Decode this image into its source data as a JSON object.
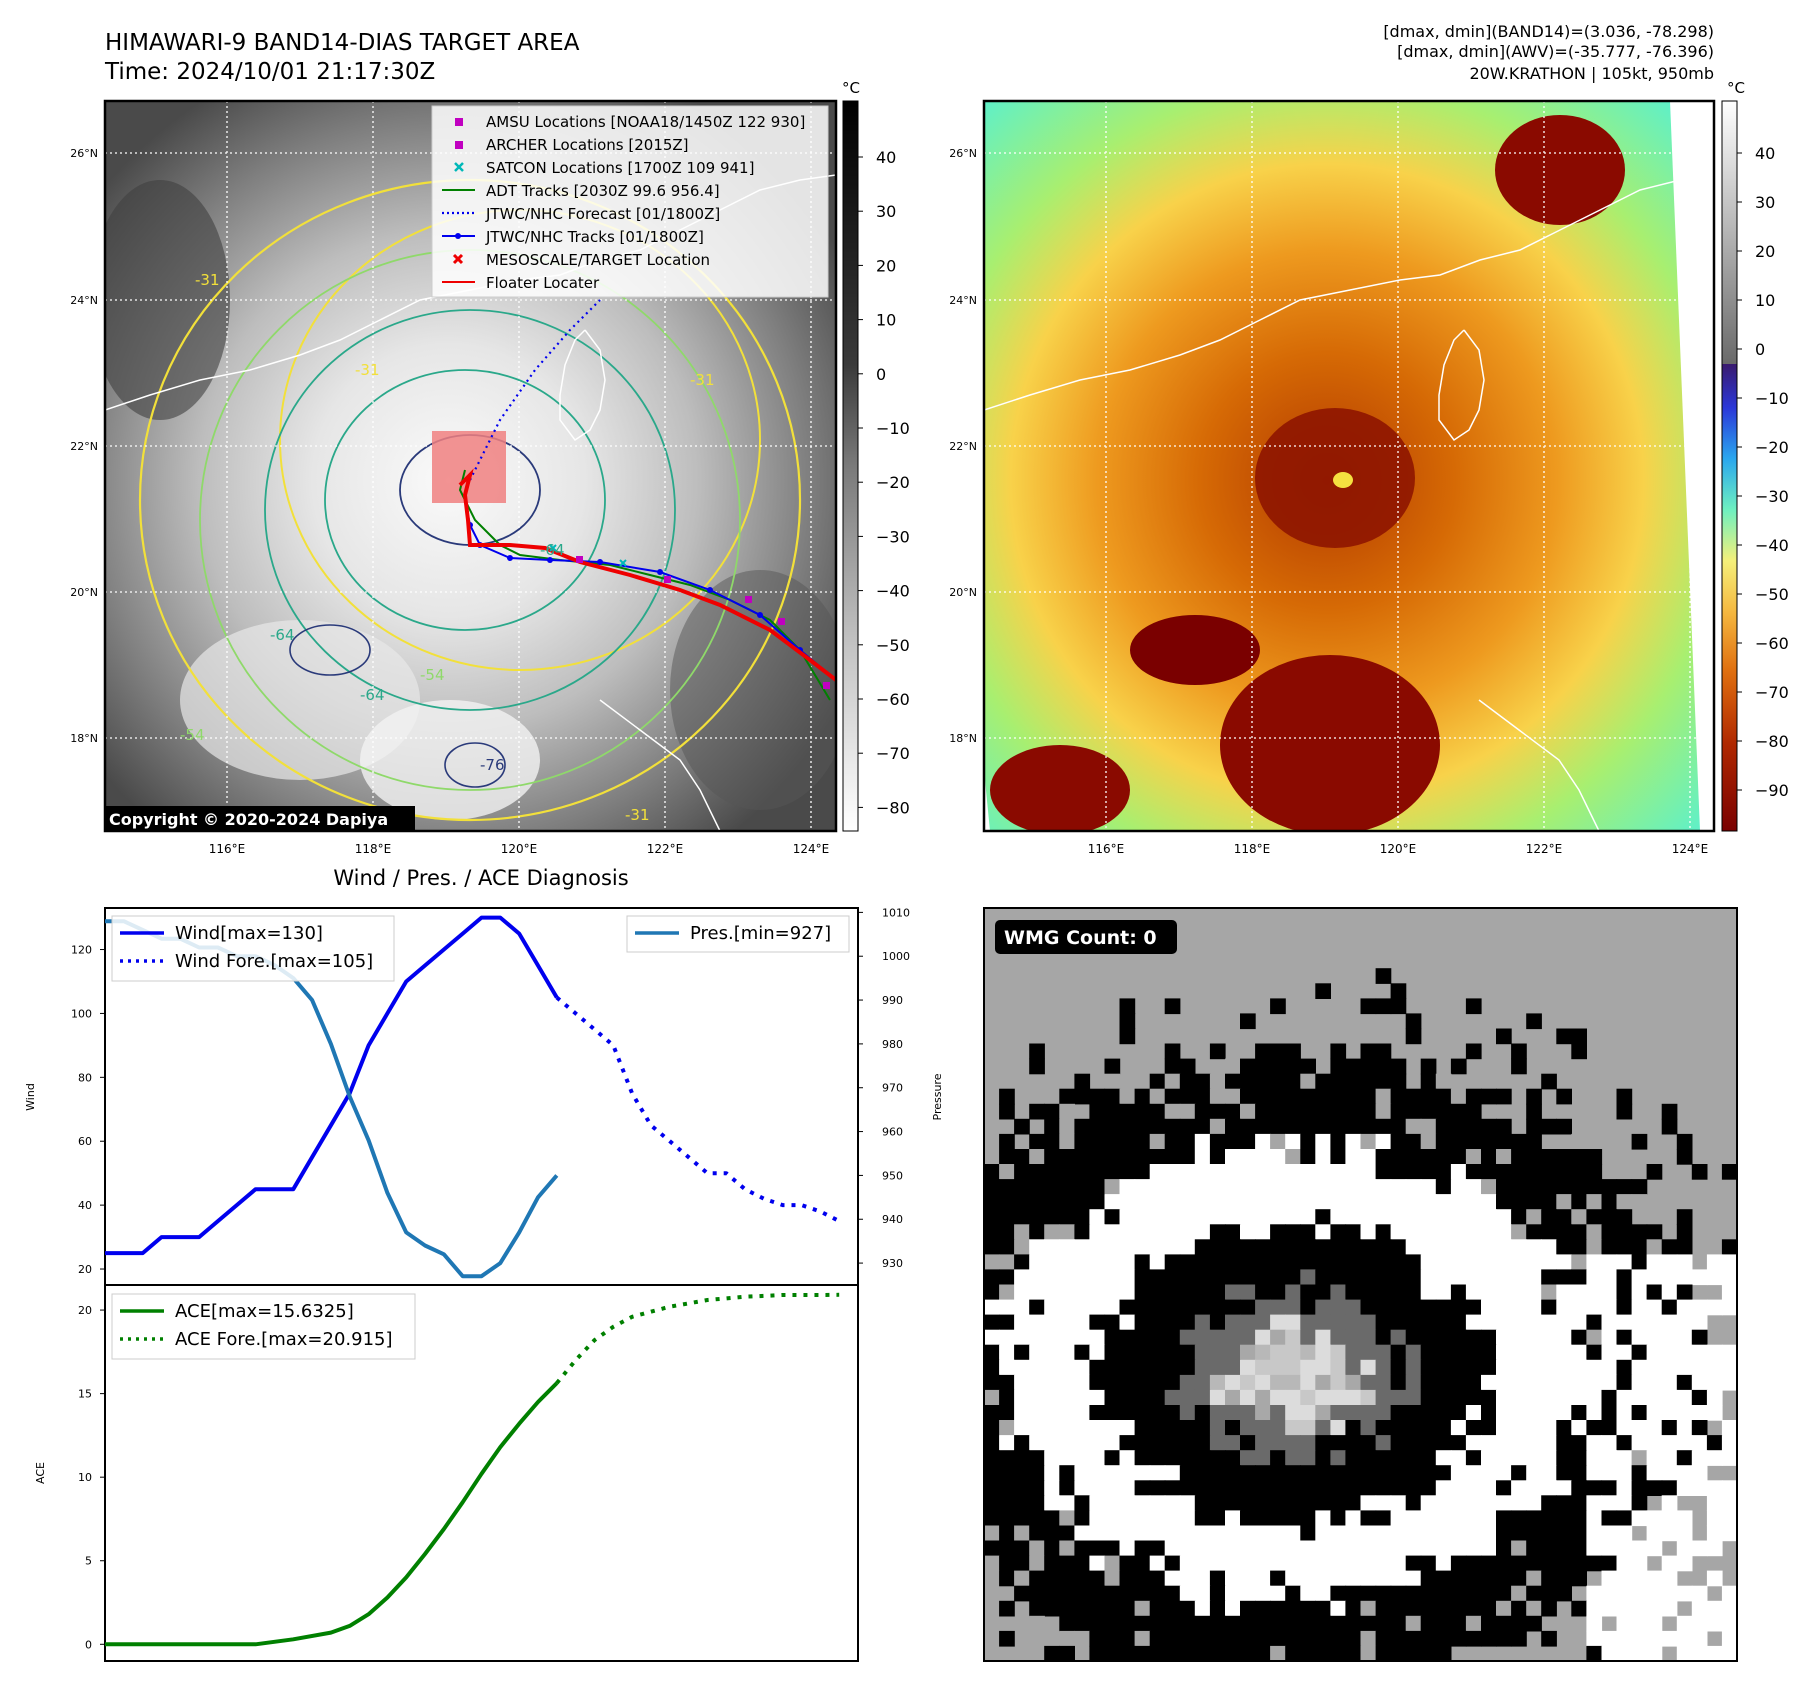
{
  "header": {
    "title_line1": "HIMAWARI-9 BAND14-DIAS TARGET AREA",
    "title_line2": "Time: 2024/10/01 21:17:30Z",
    "info_line1": "[dmax, dmin](BAND14)=(3.036, -78.298)",
    "info_line2": "[dmax, dmin](AWV)=(-35.777, -76.396)",
    "info_line3": "20W.KRATHON | 105kt, 950mb"
  },
  "map_axes": {
    "lat_labels": [
      "26°N",
      "24°N",
      "22°N",
      "20°N",
      "18°N"
    ],
    "lon_labels": [
      "116°E",
      "118°E",
      "120°E",
      "122°E",
      "124°E"
    ]
  },
  "colorbar_ir": {
    "unit": "°C",
    "ticks": [
      "40",
      "30",
      "20",
      "10",
      "0",
      "−10",
      "−20",
      "−30",
      "−40",
      "−50",
      "−60",
      "−70",
      "−80"
    ]
  },
  "colorbar_wv": {
    "unit": "°C",
    "ticks": [
      "40",
      "30",
      "20",
      "10",
      "0",
      "−10",
      "−20",
      "−30",
      "−40",
      "−50",
      "−60",
      "−70",
      "−80",
      "−90"
    ]
  },
  "legend": {
    "items": [
      "AMSU Locations [NOAA18/1450Z 122 930]",
      "ARCHER Locations [2015Z]",
      "SATCON Locations [1700Z 109 941]",
      "ADT Tracks [2030Z 99.6 956.4]",
      "JTWC/NHC Forecast [01/1800Z]",
      "JTWC/NHC Tracks [01/1800Z]",
      "MESOSCALE/TARGET Location",
      "Floater Locater"
    ],
    "colors": [
      "#c000c0",
      "#c000c0",
      "#00b8b8",
      "#008000",
      "#0000ee",
      "#0000ee",
      "#ee0000",
      "#ee0000"
    ]
  },
  "contour_labels": [
    "-31",
    "-31",
    "-64",
    "-64",
    "-54",
    "-54",
    "-76",
    "-64",
    "-31",
    "-31"
  ],
  "copyright": "Copyright © 2020-2024 Dapiya",
  "wmg": {
    "label": "WMG Count: 0"
  },
  "chart_data": [
    {
      "type": "line",
      "title": "Wind / Pres. / ACE Diagnosis",
      "ylabel": "Wind",
      "y2label": "Pressure",
      "ylim": [
        15,
        133
      ],
      "y2lim": [
        925,
        1011
      ],
      "yticks": [
        20,
        40,
        60,
        80,
        100,
        120
      ],
      "y2ticks": [
        930,
        940,
        950,
        960,
        970,
        980,
        990,
        1000,
        1010
      ],
      "xlim": [
        0,
        40
      ],
      "series": [
        {
          "name": "Wind[max=130]",
          "axis": "left",
          "style": "solid",
          "color": "#0000ee",
          "x": [
            0,
            1,
            2,
            3,
            4,
            5,
            6,
            7,
            8,
            9,
            10,
            11,
            12,
            13,
            14,
            15,
            16,
            17,
            18,
            19,
            20,
            21,
            22,
            23,
            24
          ],
          "values": [
            25,
            25,
            25,
            30,
            30,
            30,
            35,
            40,
            45,
            45,
            45,
            55,
            65,
            75,
            90,
            100,
            110,
            115,
            120,
            125,
            130,
            130,
            125,
            115,
            105
          ]
        },
        {
          "name": "Wind Fore.[max=105]",
          "axis": "left",
          "style": "dotted",
          "color": "#0000ee",
          "x": [
            24,
            25,
            26,
            27,
            28,
            29,
            30,
            31,
            32,
            33,
            34,
            35,
            36,
            37,
            38,
            39
          ],
          "values": [
            105,
            100,
            95,
            90,
            75,
            65,
            60,
            55,
            50,
            50,
            45,
            42,
            40,
            40,
            38,
            35
          ]
        },
        {
          "name": "Pres.[min=927]",
          "axis": "right",
          "style": "solid",
          "color": "#1f77b4",
          "x": [
            0,
            1,
            2,
            3,
            4,
            5,
            6,
            7,
            8,
            9,
            10,
            11,
            12,
            13,
            14,
            15,
            16,
            17,
            18,
            19,
            20,
            21,
            22,
            23,
            24
          ],
          "values": [
            1008,
            1008,
            1006,
            1004,
            1004,
            1002,
            1002,
            1000,
            1000,
            998,
            995,
            990,
            980,
            968,
            958,
            946,
            937,
            934,
            932,
            927,
            927,
            930,
            937,
            945,
            950
          ]
        }
      ]
    },
    {
      "type": "line",
      "ylabel": "ACE",
      "ylim": [
        -1,
        21.5
      ],
      "yticks": [
        0,
        5,
        10,
        15,
        20
      ],
      "xlim": [
        0,
        40
      ],
      "series": [
        {
          "name": "ACE[max=15.6325]",
          "style": "solid",
          "color": "#008000",
          "x": [
            0,
            2,
            4,
            6,
            8,
            10,
            12,
            13,
            14,
            15,
            16,
            17,
            18,
            19,
            20,
            21,
            22,
            23,
            24
          ],
          "values": [
            0,
            0,
            0,
            0,
            0,
            0.3,
            0.7,
            1.1,
            1.8,
            2.8,
            4.0,
            5.4,
            6.9,
            8.5,
            10.2,
            11.8,
            13.2,
            14.5,
            15.63
          ]
        },
        {
          "name": "ACE Fore.[max=20.915]",
          "style": "dotted",
          "color": "#008000",
          "x": [
            24,
            25,
            26,
            27,
            28,
            29,
            30,
            31,
            32,
            33,
            34,
            35,
            36,
            37,
            38,
            39
          ],
          "values": [
            15.63,
            17.0,
            18.2,
            19.0,
            19.6,
            19.9,
            20.2,
            20.4,
            20.6,
            20.7,
            20.8,
            20.85,
            20.9,
            20.9,
            20.9,
            20.915
          ]
        }
      ]
    }
  ]
}
